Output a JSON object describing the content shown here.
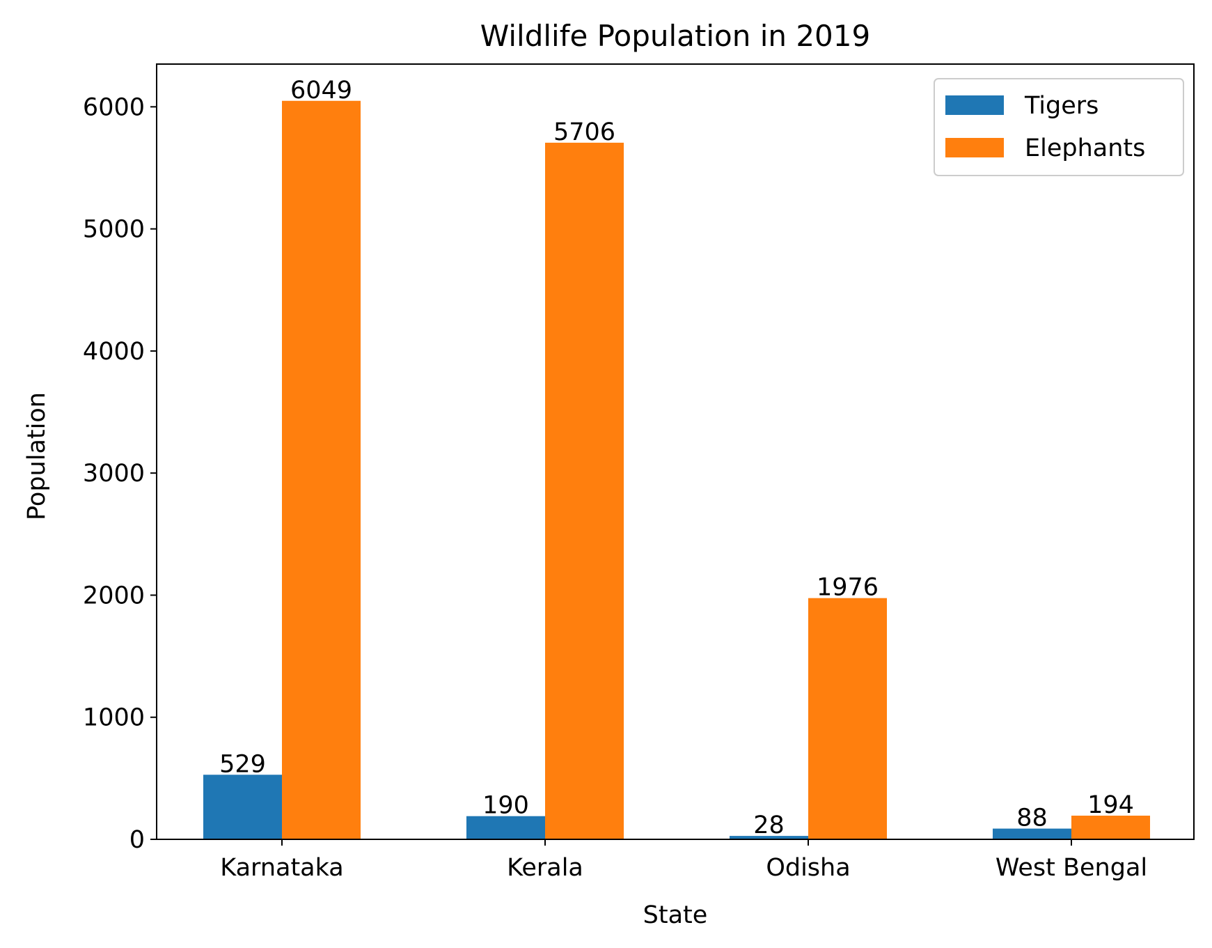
{
  "chart_data": {
    "type": "bar",
    "title": "Wildlife Population in 2019",
    "xlabel": "State",
    "ylabel": "Population",
    "categories": [
      "Karnataka",
      "Kerala",
      "Odisha",
      "West Bengal"
    ],
    "series": [
      {
        "name": "Tigers",
        "color": "#1f77b4",
        "values": [
          529,
          190,
          28,
          88
        ]
      },
      {
        "name": "Elephants",
        "color": "#ff7f0e",
        "values": [
          6049,
          5706,
          1976,
          194
        ]
      }
    ],
    "ylim": [
      0,
      6350
    ],
    "yticks": [
      0,
      1000,
      2000,
      3000,
      4000,
      5000,
      6000
    ],
    "grid": false,
    "legend_position": "top-right",
    "data_labels": true
  }
}
